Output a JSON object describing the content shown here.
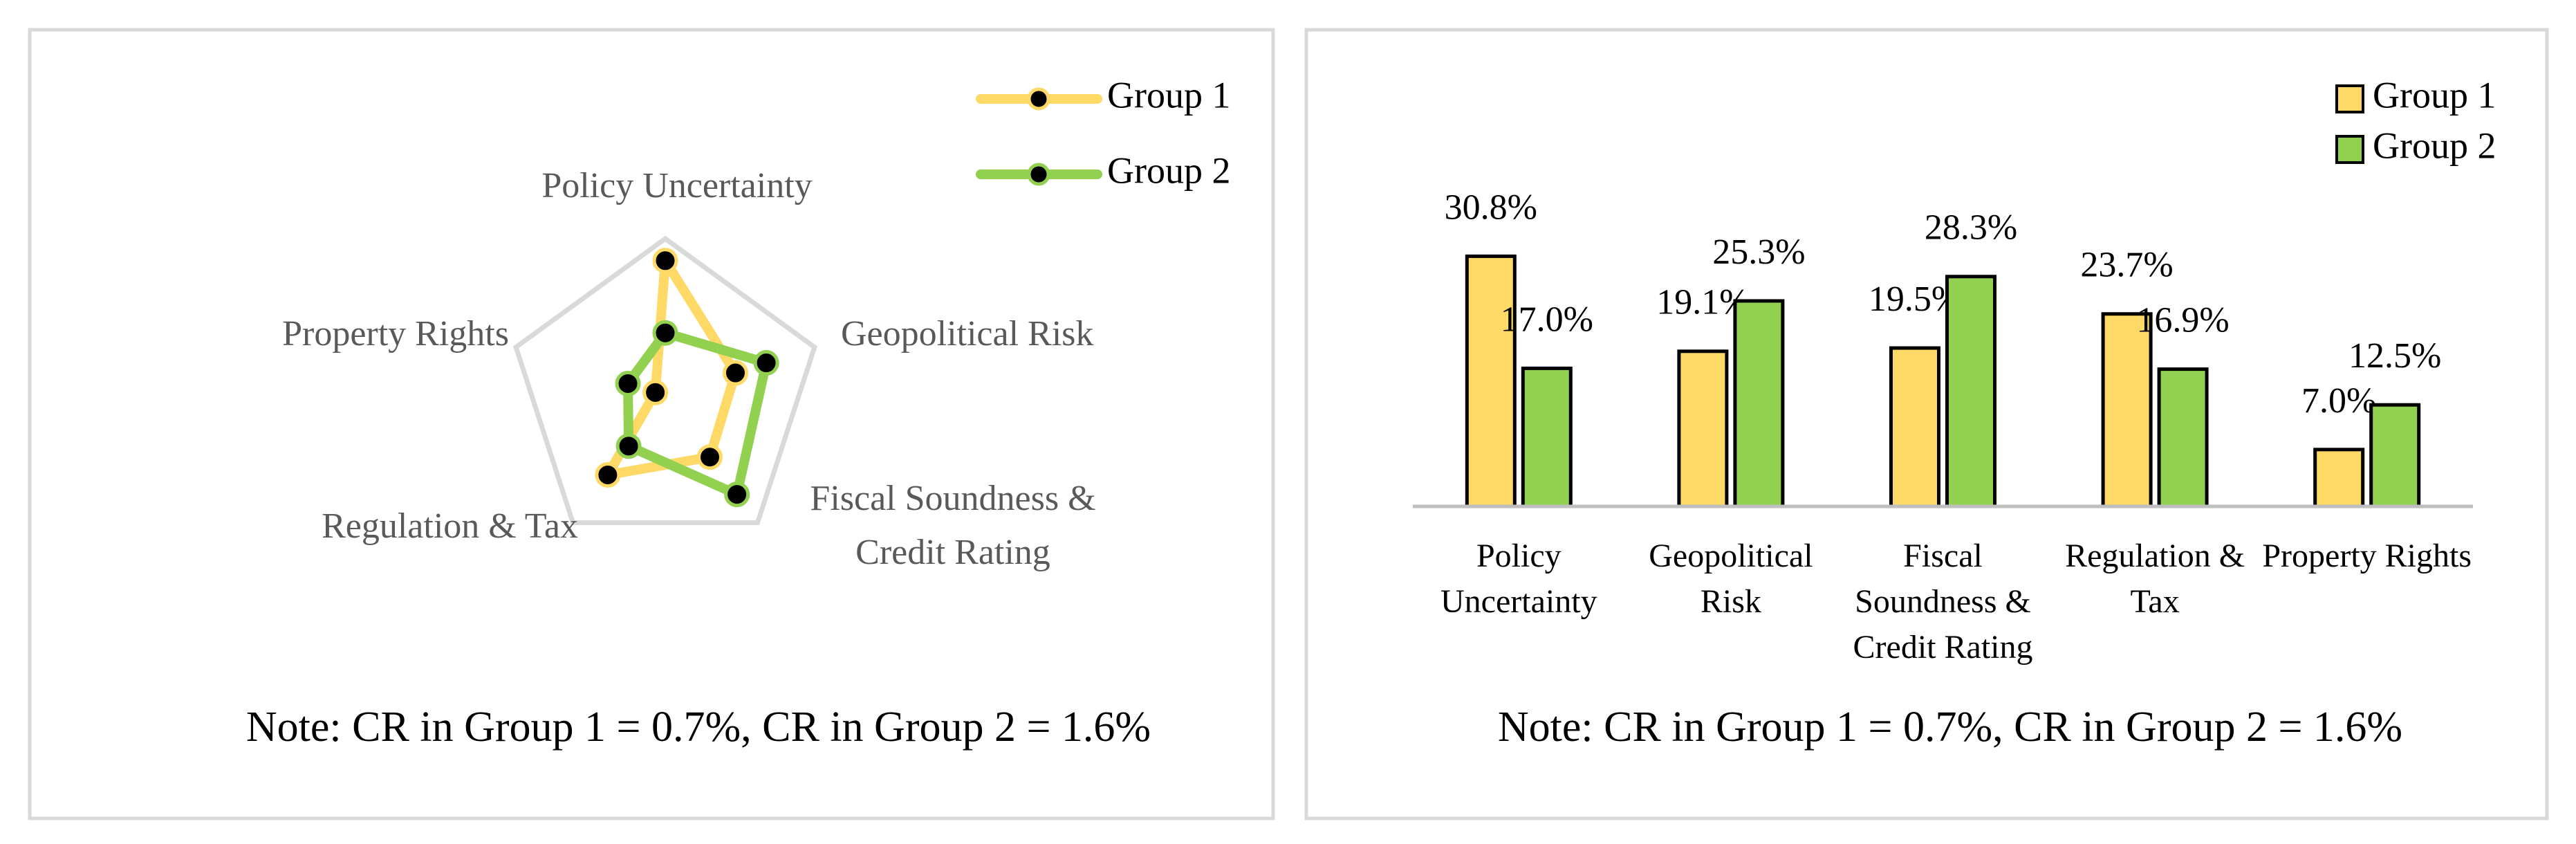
{
  "chart_data": [
    {
      "type": "radar",
      "categories": [
        "Policy Uncertainty",
        "Geopolitical Risk",
        "Fiscal Soundness & Credit Rating",
        "Regulation & Tax",
        "Property Rights"
      ],
      "series": [
        {
          "name": "Group 1",
          "color": "#ffd966",
          "values": [
            30.8,
            19.1,
            19.5,
            23.7,
            7.0
          ]
        },
        {
          "name": "Group 2",
          "color": "#92d050",
          "values": [
            17.0,
            25.3,
            28.3,
            16.9,
            12.5
          ]
        }
      ],
      "rlim": [
        5,
        35
      ],
      "legend": "top-right",
      "markers": true,
      "note": "Note: CR in Group 1 = 0.7%, CR in Group 2 = 1.6%"
    },
    {
      "type": "bar",
      "categories": [
        "Policy Uncertainty",
        "Geopolitical Risk",
        "Fiscal Soundness & Credit Rating",
        "Regulation & Tax",
        "Property Rights"
      ],
      "series": [
        {
          "name": "Group 1",
          "color": "#ffd966",
          "values": [
            30.8,
            19.1,
            19.5,
            23.7,
            7.0
          ],
          "value_labels": [
            "30.8%",
            "19.1%",
            "19.5%",
            "23.7%",
            "7.0%"
          ]
        },
        {
          "name": "Group 2",
          "color": "#92d050",
          "values": [
            17.0,
            25.3,
            28.3,
            16.9,
            12.5
          ],
          "value_labels": [
            "17.0%",
            "25.3%",
            "28.3%",
            "16.9%",
            "12.5%"
          ]
        }
      ],
      "ylim": [
        0,
        35
      ],
      "legend": "top-right",
      "note": "Note: CR in Group 1 = 0.7%, CR in Group 2 = 1.6%"
    }
  ]
}
